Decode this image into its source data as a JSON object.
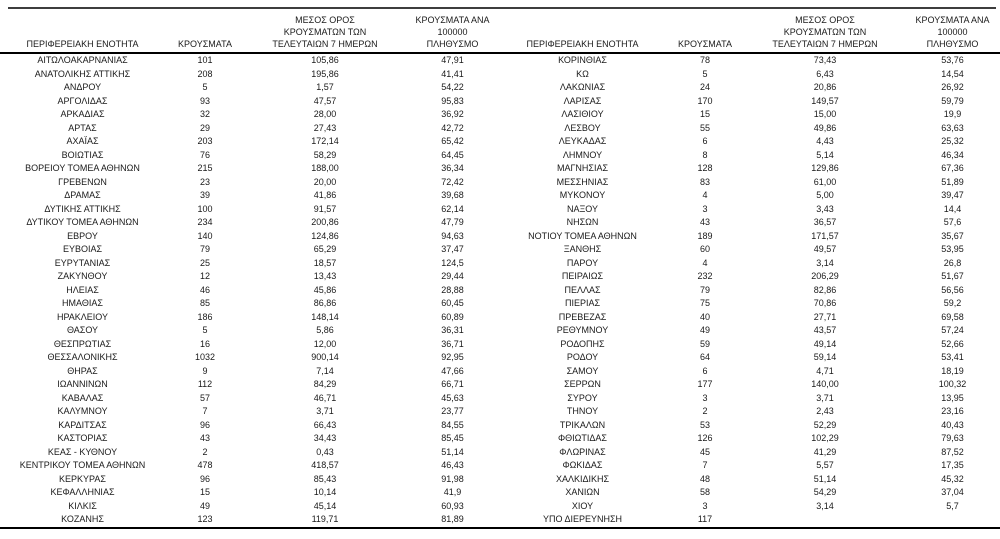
{
  "page": {
    "background": "#ffffff",
    "text_color": "#1a1a1a",
    "rule_color": "#000000"
  },
  "columns": {
    "region": "ΠΕΡΙΦΕΡΕΙΑΚΗ ΕΝΟΤΗΤΑ",
    "cases": "ΚΡΟΥΣΜΑΤΑ",
    "avg7": "ΜΕΣΟΣ ΟΡΟΣ\nΚΡΟΥΣΜΑΤΩΝ ΤΩΝ\nΤΕΛΕΥΤΑΙΩΝ 7 ΗΜΕΡΩΝ",
    "per100k": "ΚΡΟΥΣΜΑΤΑ ΑΝΑ 100000\nΠΛΗΘΥΣΜΟ"
  },
  "rows_left": [
    [
      "ΑΙΤΩΛΟΑΚΑΡΝΑΝΙΑΣ",
      "101",
      "105,86",
      "47,91"
    ],
    [
      "ΑΝΑΤΟΛΙΚΗΣ ΑΤΤΙΚΗΣ",
      "208",
      "195,86",
      "41,41"
    ],
    [
      "ΑΝΔΡΟΥ",
      "5",
      "1,57",
      "54,22"
    ],
    [
      "ΑΡΓΟΛΙΔΑΣ",
      "93",
      "47,57",
      "95,83"
    ],
    [
      "ΑΡΚΑΔΙΑΣ",
      "32",
      "28,00",
      "36,92"
    ],
    [
      "ΑΡΤΑΣ",
      "29",
      "27,43",
      "42,72"
    ],
    [
      "ΑΧΑΪΑΣ",
      "203",
      "172,14",
      "65,42"
    ],
    [
      "ΒΟΙΩΤΙΑΣ",
      "76",
      "58,29",
      "64,45"
    ],
    [
      "ΒΟΡΕΙΟΥ ΤΟΜΕΑ ΑΘΗΝΩΝ",
      "215",
      "188,00",
      "36,34"
    ],
    [
      "ΓΡΕΒΕΝΩΝ",
      "23",
      "20,00",
      "72,42"
    ],
    [
      "ΔΡΑΜΑΣ",
      "39",
      "41,86",
      "39,68"
    ],
    [
      "ΔΥΤΙΚΗΣ ΑΤΤΙΚΗΣ",
      "100",
      "91,57",
      "62,14"
    ],
    [
      "ΔΥΤΙΚΟΥ ΤΟΜΕΑ ΑΘΗΝΩΝ",
      "234",
      "200,86",
      "47,79"
    ],
    [
      "ΕΒΡΟΥ",
      "140",
      "124,86",
      "94,63"
    ],
    [
      "ΕΥΒΟΙΑΣ",
      "79",
      "65,29",
      "37,47"
    ],
    [
      "ΕΥΡΥΤΑΝΙΑΣ",
      "25",
      "18,57",
      "124,5"
    ],
    [
      "ΖΑΚΥΝΘΟΥ",
      "12",
      "13,43",
      "29,44"
    ],
    [
      "ΗΛΕΙΑΣ",
      "46",
      "45,86",
      "28,88"
    ],
    [
      "ΗΜΑΘΙΑΣ",
      "85",
      "86,86",
      "60,45"
    ],
    [
      "ΗΡΑΚΛΕΙΟΥ",
      "186",
      "148,14",
      "60,89"
    ],
    [
      "ΘΑΣΟΥ",
      "5",
      "5,86",
      "36,31"
    ],
    [
      "ΘΕΣΠΡΩΤΙΑΣ",
      "16",
      "12,00",
      "36,71"
    ],
    [
      "ΘΕΣΣΑΛΟΝΙΚΗΣ",
      "1032",
      "900,14",
      "92,95"
    ],
    [
      "ΘΗΡΑΣ",
      "9",
      "7,14",
      "47,66"
    ],
    [
      "ΙΩΑΝΝΙΝΩΝ",
      "112",
      "84,29",
      "66,71"
    ],
    [
      "ΚΑΒΑΛΑΣ",
      "57",
      "46,71",
      "45,63"
    ],
    [
      "ΚΑΛΥΜΝΟΥ",
      "7",
      "3,71",
      "23,77"
    ],
    [
      "ΚΑΡΔΙΤΣΑΣ",
      "96",
      "66,43",
      "84,55"
    ],
    [
      "ΚΑΣΤΟΡΙΑΣ",
      "43",
      "34,43",
      "85,45"
    ],
    [
      "ΚΕΑΣ - ΚΥΘΝΟΥ",
      "2",
      "0,43",
      "51,14"
    ],
    [
      "ΚΕΝΤΡΙΚΟΥ ΤΟΜΕΑ ΑΘΗΝΩΝ",
      "478",
      "418,57",
      "46,43"
    ],
    [
      "ΚΕΡΚΥΡΑΣ",
      "96",
      "85,43",
      "91,98"
    ],
    [
      "ΚΕΦΑΛΛΗΝΙΑΣ",
      "15",
      "10,14",
      "41,9"
    ],
    [
      "ΚΙΛΚΙΣ",
      "49",
      "45,14",
      "60,93"
    ],
    [
      "ΚΟΖΑΝΗΣ",
      "123",
      "119,71",
      "81,89"
    ]
  ],
  "rows_right": [
    [
      "ΚΟΡΙΝΘΙΑΣ",
      "78",
      "73,43",
      "53,76"
    ],
    [
      "ΚΩ",
      "5",
      "6,43",
      "14,54"
    ],
    [
      "ΛΑΚΩΝΙΑΣ",
      "24",
      "20,86",
      "26,92"
    ],
    [
      "ΛΑΡΙΣΑΣ",
      "170",
      "149,57",
      "59,79"
    ],
    [
      "ΛΑΣΙΘΙΟΥ",
      "15",
      "15,00",
      "19,9"
    ],
    [
      "ΛΕΣΒΟΥ",
      "55",
      "49,86",
      "63,63"
    ],
    [
      "ΛΕΥΚΑΔΑΣ",
      "6",
      "4,43",
      "25,32"
    ],
    [
      "ΛΗΜΝΟΥ",
      "8",
      "5,14",
      "46,34"
    ],
    [
      "ΜΑΓΝΗΣΙΑΣ",
      "128",
      "129,86",
      "67,36"
    ],
    [
      "ΜΕΣΣΗΝΙΑΣ",
      "83",
      "61,00",
      "51,89"
    ],
    [
      "ΜΥΚΟΝΟΥ",
      "4",
      "5,00",
      "39,47"
    ],
    [
      "ΝΑΞΟΥ",
      "3",
      "3,43",
      "14,4"
    ],
    [
      "ΝΗΣΩΝ",
      "43",
      "36,57",
      "57,6"
    ],
    [
      "ΝΟΤΙΟΥ ΤΟΜΕΑ ΑΘΗΝΩΝ",
      "189",
      "171,57",
      "35,67"
    ],
    [
      "ΞΑΝΘΗΣ",
      "60",
      "49,57",
      "53,95"
    ],
    [
      "ΠΑΡΟΥ",
      "4",
      "3,14",
      "26,8"
    ],
    [
      "ΠΕΙΡΑΙΩΣ",
      "232",
      "206,29",
      "51,67"
    ],
    [
      "ΠΕΛΛΑΣ",
      "79",
      "82,86",
      "56,56"
    ],
    [
      "ΠΙΕΡΙΑΣ",
      "75",
      "70,86",
      "59,2"
    ],
    [
      "ΠΡΕΒΕΖΑΣ",
      "40",
      "27,71",
      "69,58"
    ],
    [
      "ΡΕΘΥΜΝΟΥ",
      "49",
      "43,57",
      "57,24"
    ],
    [
      "ΡΟΔΟΠΗΣ",
      "59",
      "49,14",
      "52,66"
    ],
    [
      "ΡΟΔΟΥ",
      "64",
      "59,14",
      "53,41"
    ],
    [
      "ΣΑΜΟΥ",
      "6",
      "4,71",
      "18,19"
    ],
    [
      "ΣΕΡΡΩΝ",
      "177",
      "140,00",
      "100,32"
    ],
    [
      "ΣΥΡΟΥ",
      "3",
      "3,71",
      "13,95"
    ],
    [
      "ΤΗΝΟΥ",
      "2",
      "2,43",
      "23,16"
    ],
    [
      "ΤΡΙΚΑΛΩΝ",
      "53",
      "52,29",
      "40,43"
    ],
    [
      "ΦΘΙΩΤΙΔΑΣ",
      "126",
      "102,29",
      "79,63"
    ],
    [
      "ΦΛΩΡΙΝΑΣ",
      "45",
      "41,29",
      "87,52"
    ],
    [
      "ΦΩΚΙΔΑΣ",
      "7",
      "5,57",
      "17,35"
    ],
    [
      "ΧΑΛΚΙΔΙΚΗΣ",
      "48",
      "51,14",
      "45,32"
    ],
    [
      "ΧΑΝΙΩΝ",
      "58",
      "54,29",
      "37,04"
    ],
    [
      "ΧΙΟΥ",
      "3",
      "3,14",
      "5,7"
    ],
    [
      "ΥΠΟ ΔΙΕΡΕΥΝΗΣΗ",
      "117",
      "",
      ""
    ]
  ]
}
